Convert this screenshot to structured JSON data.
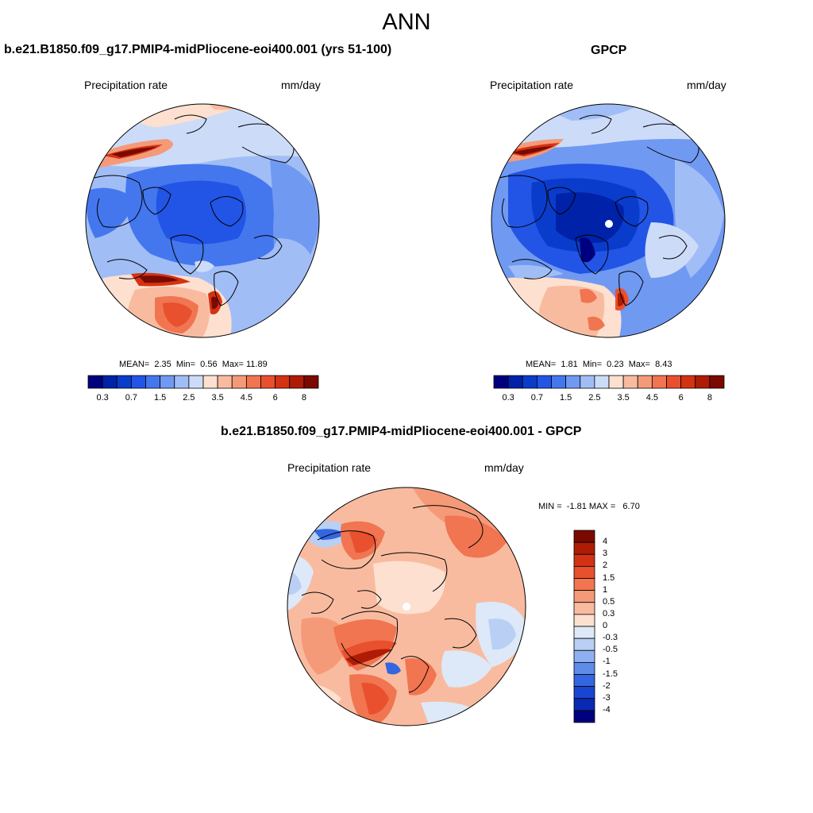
{
  "figure": {
    "title": "ANN",
    "field_label": "Precipitation rate",
    "units": "mm/day"
  },
  "panels": {
    "model": {
      "title": "b.e21.B1850.f09_g17.PMIP4-midPliocene-eoi400.001 (yrs 51-100)",
      "field_label": "Precipitation rate",
      "units": "mm/day",
      "mean_label": "MEAN=",
      "mean": "2.35",
      "min_label": "Min=",
      "min": "0.56",
      "max_label": "Max=",
      "max": "11.89"
    },
    "obs": {
      "title": "GPCP",
      "field_label": "Precipitation rate",
      "units": "mm/day",
      "mean_label": "MEAN=",
      "mean": "1.81",
      "min_label": "Min=",
      "min": "0.23",
      "max_label": "Max=",
      "max": "8.43"
    },
    "diff": {
      "title": "b.e21.B1850.f09_g17.PMIP4-midPliocene-eoi400.001 - GPCP",
      "field_label": "Precipitation rate",
      "units": "mm/day",
      "min_label": "MIN =",
      "min": "-1.81",
      "max_label": "MAX =",
      "max": "6.70"
    }
  },
  "chart_data": [
    {
      "type": "heatmap",
      "projection": "north-polar-stereographic",
      "title": "b.e21.B1850.f09_g17.PMIP4-midPliocene-eoi400.001 (yrs 51-100)",
      "variable": "Precipitation rate",
      "units": "mm/day",
      "stats": {
        "mean": 2.35,
        "min": 0.56,
        "max": 11.89
      },
      "colorbar": {
        "orientation": "horizontal",
        "levels": [
          0.2,
          0.3,
          0.5,
          0.7,
          1,
          1.5,
          2,
          2.5,
          3,
          3.5,
          4,
          4.5,
          5,
          6,
          7,
          8
        ],
        "tick_labels": [
          "0.3",
          "0.7",
          "1.5",
          "2.5",
          "3.5",
          "4.5",
          "6",
          "8"
        ],
        "colors": [
          "#00007f",
          "#0022a8",
          "#0a3ccc",
          "#2255e6",
          "#4477ee",
          "#7099f2",
          "#a0bdf6",
          "#ccdcf8",
          "#fde0cf",
          "#f9bba0",
          "#f59a78",
          "#f07550",
          "#e8502e",
          "#d43214",
          "#ae1c06",
          "#7a0a00"
        ]
      }
    },
    {
      "type": "heatmap",
      "projection": "north-polar-stereographic",
      "title": "GPCP",
      "variable": "Precipitation rate",
      "units": "mm/day",
      "stats": {
        "mean": 1.81,
        "min": 0.23,
        "max": 8.43
      },
      "colorbar": {
        "orientation": "horizontal",
        "levels": [
          0.2,
          0.3,
          0.5,
          0.7,
          1,
          1.5,
          2,
          2.5,
          3,
          3.5,
          4,
          4.5,
          5,
          6,
          7,
          8
        ],
        "tick_labels": [
          "0.3",
          "0.7",
          "1.5",
          "2.5",
          "3.5",
          "4.5",
          "6",
          "8"
        ],
        "colors": [
          "#00007f",
          "#0022a8",
          "#0a3ccc",
          "#2255e6",
          "#4477ee",
          "#7099f2",
          "#a0bdf6",
          "#ccdcf8",
          "#fde0cf",
          "#f9bba0",
          "#f59a78",
          "#f07550",
          "#e8502e",
          "#d43214",
          "#ae1c06",
          "#7a0a00"
        ]
      }
    },
    {
      "type": "heatmap",
      "projection": "north-polar-stereographic",
      "title": "b.e21.B1850.f09_g17.PMIP4-midPliocene-eoi400.001 - GPCP",
      "variable": "Precipitation rate",
      "units": "mm/day",
      "stats": {
        "min": -1.81,
        "max": 6.7
      },
      "colorbar": {
        "orientation": "vertical",
        "tick_labels_top_to_bottom": [
          "4",
          "3",
          "2",
          "1.5",
          "1",
          "0.5",
          "0.3",
          "0",
          "-0.3",
          "-0.5",
          "-1",
          "-1.5",
          "-2",
          "-3",
          "-4"
        ],
        "colors_top_to_bottom": [
          "#7a0a00",
          "#ae1c06",
          "#d43214",
          "#e8502e",
          "#f07550",
          "#f59a78",
          "#f9bba0",
          "#fde0cf",
          "#dde9f8",
          "#b9cff4",
          "#8fb0f0",
          "#5f8be9",
          "#3366e0",
          "#1846d2",
          "#0a28b4",
          "#00007f"
        ]
      }
    }
  ]
}
